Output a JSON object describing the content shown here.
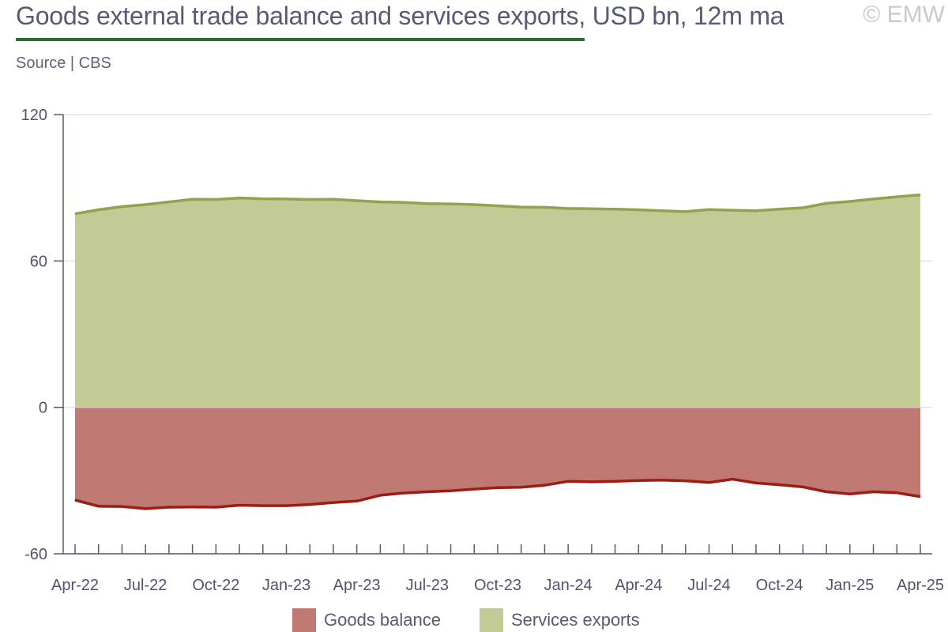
{
  "header": {
    "title": "Goods external trade balance and services exports, USD bn, 12m ma",
    "subtitle": "Source | CBS",
    "watermark": "© EMW"
  },
  "colors": {
    "services_fill": "#c2cb95",
    "services_line": "#93a24c",
    "goods_fill": "#c07872",
    "goods_line": "#9b1e15",
    "axis": "#545974",
    "grid": "#dde4ee"
  },
  "legend": {
    "goods": "Goods balance",
    "services": "Services exports"
  },
  "chart_data": {
    "type": "area",
    "title": "Goods external trade balance and services exports, USD bn, 12m ma",
    "ylim": [
      -60,
      120
    ],
    "yticks": [
      -60,
      0,
      60,
      120
    ],
    "xtick_labels": [
      "Apr-22",
      "Jul-22",
      "Oct-22",
      "Jan-23",
      "Apr-23",
      "Jul-23",
      "Oct-23",
      "Jan-24",
      "Apr-24",
      "Jul-24",
      "Oct-24",
      "Jan-25",
      "Apr-25"
    ],
    "x": [
      "Apr-22",
      "May-22",
      "Jun-22",
      "Jul-22",
      "Aug-22",
      "Sep-22",
      "Oct-22",
      "Nov-22",
      "Dec-22",
      "Jan-23",
      "Feb-23",
      "Mar-23",
      "Apr-23",
      "May-23",
      "Jun-23",
      "Jul-23",
      "Aug-23",
      "Sep-23",
      "Oct-23",
      "Nov-23",
      "Dec-23",
      "Jan-24",
      "Feb-24",
      "Mar-24",
      "Apr-24",
      "May-24",
      "Jun-24",
      "Jul-24",
      "Aug-24",
      "Sep-24",
      "Oct-24",
      "Nov-24",
      "Dec-24",
      "Jan-25",
      "Feb-25",
      "Mar-25",
      "Apr-25"
    ],
    "series": [
      {
        "name": "Goods balance",
        "values": [
          -38.0,
          -40.5,
          -40.6,
          -41.5,
          -40.9,
          -40.8,
          -40.9,
          -40.1,
          -40.3,
          -40.3,
          -39.8,
          -39.0,
          -38.4,
          -36.0,
          -35.1,
          -34.6,
          -34.2,
          -33.5,
          -32.9,
          -32.7,
          -31.9,
          -30.3,
          -30.5,
          -30.3,
          -30.0,
          -29.8,
          -30.1,
          -30.8,
          -29.4,
          -31.0,
          -31.7,
          -32.6,
          -34.6,
          -35.5,
          -34.6,
          -35.0,
          -36.6
        ]
      },
      {
        "name": "Services exports",
        "values": [
          79.3,
          81.0,
          82.3,
          83.1,
          84.2,
          85.3,
          85.2,
          85.8,
          85.5,
          85.4,
          85.2,
          85.3,
          84.7,
          84.2,
          84.0,
          83.5,
          83.4,
          83.1,
          82.6,
          82.1,
          82.0,
          81.5,
          81.4,
          81.2,
          81.0,
          80.6,
          80.2,
          81.1,
          80.8,
          80.6,
          81.2,
          81.8,
          83.6,
          84.4,
          85.4,
          86.3,
          87.1
        ]
      }
    ]
  }
}
